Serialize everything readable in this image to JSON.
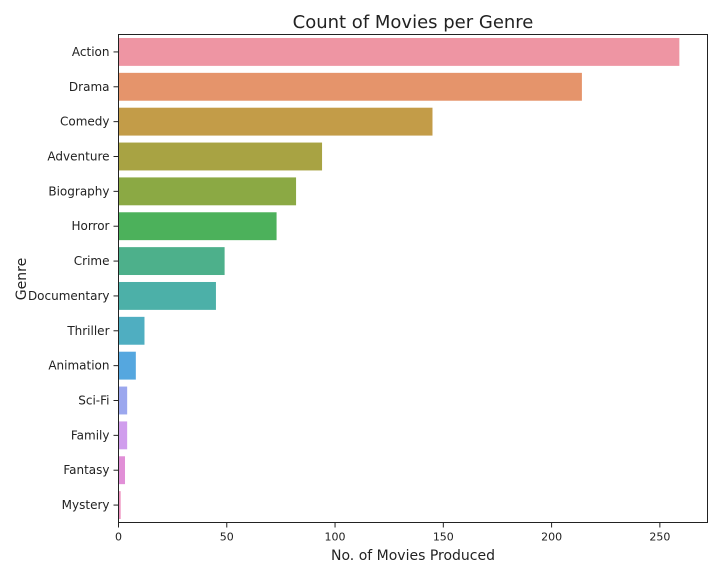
{
  "chart_data": {
    "type": "bar",
    "orientation": "horizontal",
    "title": "Count of Movies per Genre",
    "xlabel": "No. of Movies Produced",
    "ylabel": "Genre",
    "xlim": [
      0,
      272
    ],
    "xticks": [
      0,
      50,
      100,
      150,
      200,
      250
    ],
    "grid": false,
    "categories": [
      "Action",
      "Drama",
      "Comedy",
      "Adventure",
      "Biography",
      "Horror",
      "Crime",
      "Documentary",
      "Thriller",
      "Animation",
      "Sci-Fi",
      "Family",
      "Fantasy",
      "Mystery"
    ],
    "values": [
      259,
      214,
      145,
      94,
      82,
      73,
      49,
      45,
      12,
      8,
      4,
      4,
      3,
      1
    ],
    "colors": [
      "#ee95a3",
      "#e5946b",
      "#c39c48",
      "#a8a343",
      "#8ba944",
      "#4cb15b",
      "#4db08b",
      "#4cb0a8",
      "#4faec1",
      "#55a7df",
      "#9ba7ee",
      "#d09ded",
      "#e18fd7",
      "#ef92c0"
    ]
  }
}
